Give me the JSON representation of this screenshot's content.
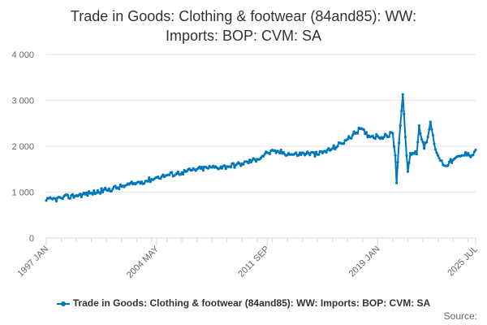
{
  "title_line1": "Trade in Goods: Clothing & footwear (84and85): WW:",
  "title_line2": "Imports: BOP: CVM: SA",
  "source_label": "Source:",
  "colors": {
    "series": "#0077bb",
    "grid": "#e6e6e6",
    "axis": "#ccd6eb",
    "tick_text": "#666666"
  },
  "chart_data": {
    "type": "line",
    "title": "Trade in Goods: Clothing & footwear (84and85): WW: Imports: BOP: CVM: SA",
    "xlabel": "",
    "ylabel": "",
    "x_range": [
      "1997-01",
      "2025-07"
    ],
    "ylim": [
      0,
      4000
    ],
    "y_ticks": [
      0,
      1000,
      2000,
      3000,
      4000
    ],
    "y_tick_labels": [
      "0",
      "1 000",
      "2 000",
      "3 000",
      "4 000"
    ],
    "x_tick_labels": [
      {
        "date": "1997-01",
        "label": "1997 JAN"
      },
      {
        "date": "2004-05",
        "label": "2004 MAY"
      },
      {
        "date": "2011-09",
        "label": "2011 SEP"
      },
      {
        "date": "2019-01",
        "label": "2019 JAN"
      },
      {
        "date": "2025-07",
        "label": "2025 JUL"
      }
    ],
    "grid": true,
    "legend_position": "bottom",
    "series": [
      {
        "name": "Trade in Goods: Clothing & footwear (84and85): WW: Imports: BOP: CVM: SA",
        "anchors": [
          [
            "1997-01",
            820
          ],
          [
            "1998-01",
            870
          ],
          [
            "1999-01",
            930
          ],
          [
            "2000-01",
            980
          ],
          [
            "2001-01",
            1050
          ],
          [
            "2002-01",
            1120
          ],
          [
            "2003-01",
            1200
          ],
          [
            "2004-01",
            1280
          ],
          [
            "2004-05",
            1320
          ],
          [
            "2005-01",
            1370
          ],
          [
            "2006-01",
            1430
          ],
          [
            "2007-01",
            1500
          ],
          [
            "2008-01",
            1540
          ],
          [
            "2009-01",
            1560
          ],
          [
            "2010-01",
            1620
          ],
          [
            "2011-01",
            1720
          ],
          [
            "2011-09",
            1860
          ],
          [
            "2012-06",
            1880
          ],
          [
            "2013-06",
            1820
          ],
          [
            "2014-06",
            1850
          ],
          [
            "2015-01",
            1820
          ],
          [
            "2016-01",
            1950
          ],
          [
            "2017-01",
            2150
          ],
          [
            "2017-11",
            2380
          ],
          [
            "2018-06",
            2230
          ],
          [
            "2019-01",
            2220
          ],
          [
            "2019-06",
            2200
          ],
          [
            "2020-01",
            2280
          ],
          [
            "2020-03",
            1800
          ],
          [
            "2020-04",
            1200
          ],
          [
            "2020-05",
            1650
          ],
          [
            "2020-07",
            2450
          ],
          [
            "2020-09",
            3130
          ],
          [
            "2020-10",
            2700
          ],
          [
            "2020-12",
            1800
          ],
          [
            "2021-01",
            1450
          ],
          [
            "2021-03",
            1850
          ],
          [
            "2021-08",
            1830
          ],
          [
            "2021-10",
            2450
          ],
          [
            "2021-12",
            2150
          ],
          [
            "2022-02",
            1950
          ],
          [
            "2022-05",
            2200
          ],
          [
            "2022-07",
            2530
          ],
          [
            "2022-10",
            2050
          ],
          [
            "2023-01",
            1800
          ],
          [
            "2023-06",
            1580
          ],
          [
            "2024-01",
            1700
          ],
          [
            "2024-07",
            1780
          ],
          [
            "2025-01",
            1850
          ],
          [
            "2025-04",
            1800
          ],
          [
            "2025-07",
            1920
          ]
        ]
      }
    ]
  }
}
